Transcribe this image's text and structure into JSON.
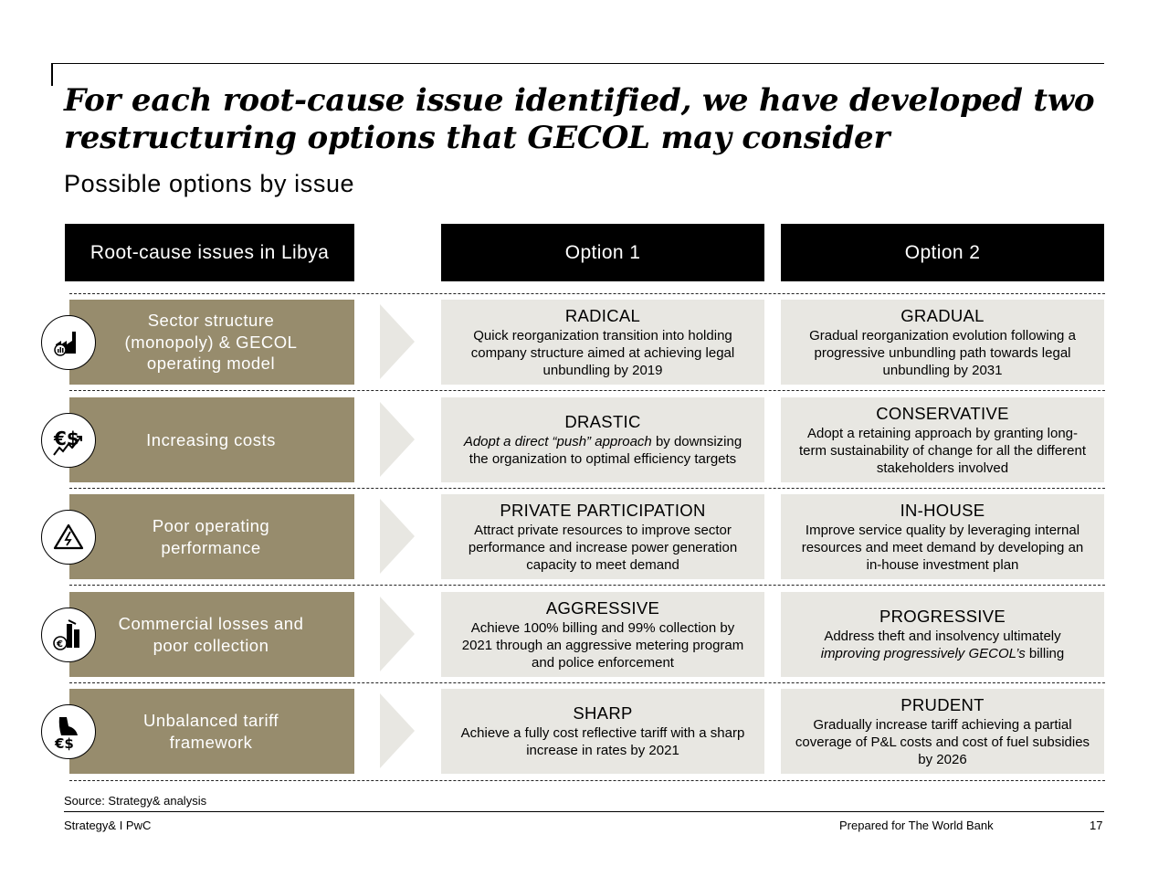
{
  "title": "For each root-cause issue identified, we have developed two restructuring options that GECOL may consider",
  "subtitle": "Possible options by issue",
  "headers": {
    "issues": "Root-cause issues in Libya",
    "option1": "Option 1",
    "option2": "Option 2"
  },
  "rows": [
    {
      "issue": "Sector structure (monopoly) & GECOL operating model",
      "icon": "factory-icon",
      "option1": {
        "title": "RADICAL",
        "text": "Quick reorganization transition into holding company structure aimed at achieving legal unbundling by 2019"
      },
      "option2": {
        "title": "GRADUAL",
        "text": "Gradual reorganization evolution following a progressive unbundling path towards legal unbundling by 2031"
      }
    },
    {
      "issue": "Increasing costs",
      "icon": "currency-rising-icon",
      "option1": {
        "title": "DRASTIC",
        "text_em": "Adopt a direct “push” approach",
        "text": " by downsizing the organization to optimal efficiency targets"
      },
      "option2": {
        "title": "CONSERVATIVE",
        "text": "Adopt a retaining approach by granting long-term sustainability of change for all the different stakeholders involved"
      }
    },
    {
      "issue": "Poor operating performance",
      "icon": "warning-icon",
      "option1": {
        "title": "PRIVATE PARTICIPATION",
        "text": "Attract private resources to improve sector performance and increase power generation capacity to meet demand"
      },
      "option2": {
        "title": "IN-HOUSE",
        "text": "Improve service quality by leveraging internal resources and meet demand by developing an in-house investment plan"
      }
    },
    {
      "issue": "Commercial losses and poor collection",
      "icon": "euro-collection-icon",
      "option1": {
        "title": "AGGRESSIVE",
        "text": "Achieve 100% billing and 99% collection by 2021 through an aggressive metering program and police enforcement"
      },
      "option2": {
        "title": "PROGRESSIVE",
        "text": "Address theft and insolvency ultimately",
        "text_em": "improving progressively GECOL’s",
        "text_end": " billing"
      }
    },
    {
      "issue": "Unbalanced tariff framework",
      "icon": "tariff-scale-icon",
      "option1": {
        "title": "SHARP",
        "text": "Achieve a fully cost reflective tariff with a sharp increase in rates by 2021"
      },
      "option2": {
        "title": "PRUDENT",
        "text": "Gradually increase tariff achieving a partial coverage of P&L costs and cost of fuel subsidies by 2026"
      }
    }
  ],
  "source": "Source: Strategy& analysis",
  "footer": {
    "left": "Strategy& I PwC",
    "center": "Prepared for The World Bank",
    "page": "17"
  }
}
